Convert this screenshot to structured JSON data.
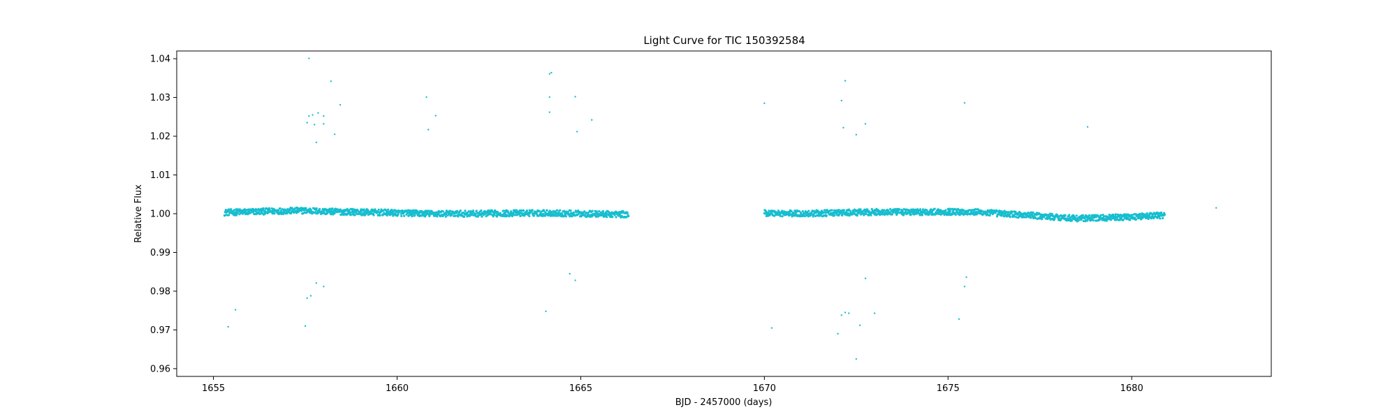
{
  "chart_data": {
    "type": "scatter",
    "title": "Light Curve for TIC 150392584",
    "xlabel": "BJD - 2457000 (days)",
    "ylabel": "Relative Flux",
    "xlim": [
      1654.0,
      1683.8
    ],
    "ylim": [
      0.958,
      1.042
    ],
    "xticks": [
      1655,
      1660,
      1665,
      1670,
      1675,
      1680
    ],
    "yticks": [
      0.96,
      0.97,
      0.98,
      0.99,
      1.0,
      1.01,
      1.02,
      1.03,
      1.04
    ],
    "grid": false,
    "legend": "none",
    "color": "#17becf",
    "series": [
      {
        "baseline_segments": [
          {
            "x": [
              1655.3,
              1656.0,
              1656.8,
              1657.5,
              1658.0,
              1659.0,
              1660.0,
              1661.0,
              1662.0,
              1663.0,
              1664.0,
              1665.0,
              1666.3
            ],
            "y": [
              1.0003,
              1.0005,
              1.0007,
              1.0008,
              1.0006,
              1.0004,
              1.0002,
              1.0,
              1.0,
              1.0001,
              1.0002,
              1.0,
              0.9998
            ]
          },
          {
            "x": [
              1670.0,
              1671.0,
              1672.0,
              1673.0,
              1674.0,
              1675.0,
              1675.8,
              1676.5,
              1677.5,
              1678.5,
              1679.5,
              1680.9
            ],
            "y": [
              1.0002,
              1.0,
              1.0002,
              1.0004,
              1.0004,
              1.0005,
              1.0004,
              1.0,
              0.9994,
              0.9988,
              0.999,
              0.9996
            ]
          }
        ],
        "outliers": [
          [
            1655.4,
            0.9708
          ],
          [
            1655.6,
            0.9752
          ],
          [
            1657.5,
            0.971
          ],
          [
            1657.55,
            0.9782
          ],
          [
            1657.65,
            0.9788
          ],
          [
            1657.8,
            0.9821
          ],
          [
            1658.0,
            0.9812
          ],
          [
            1657.6,
            1.0252
          ],
          [
            1657.7,
            1.0255
          ],
          [
            1657.85,
            1.026
          ],
          [
            1658.0,
            1.0252
          ],
          [
            1657.55,
            1.0235
          ],
          [
            1657.75,
            1.023
          ],
          [
            1657.6,
            1.0401
          ],
          [
            1658.2,
            1.0342
          ],
          [
            1658.45,
            1.0281
          ],
          [
            1658.0,
            1.0232
          ],
          [
            1658.3,
            1.0205
          ],
          [
            1657.8,
            1.0184
          ],
          [
            1660.8,
            1.0301
          ],
          [
            1661.05,
            1.0253
          ],
          [
            1660.85,
            1.0217
          ],
          [
            1664.15,
            1.0361
          ],
          [
            1664.2,
            1.0364
          ],
          [
            1664.15,
            1.0301
          ],
          [
            1664.15,
            1.0262
          ],
          [
            1664.85,
            1.0302
          ],
          [
            1665.3,
            1.0242
          ],
          [
            1664.9,
            1.0212
          ],
          [
            1664.05,
            0.9748
          ],
          [
            1664.7,
            0.9845
          ],
          [
            1664.85,
            0.9828
          ],
          [
            1670.0,
            1.0285
          ],
          [
            1670.2,
            0.9705
          ],
          [
            1672.1,
            1.0292
          ],
          [
            1672.2,
            1.0343
          ],
          [
            1672.15,
            1.0222
          ],
          [
            1672.5,
            1.0204
          ],
          [
            1672.75,
            1.0232
          ],
          [
            1672.0,
            0.969
          ],
          [
            1672.1,
            0.9738
          ],
          [
            1672.2,
            0.9745
          ],
          [
            1672.3,
            0.9743
          ],
          [
            1672.6,
            0.9712
          ],
          [
            1672.75,
            0.9833
          ],
          [
            1672.5,
            0.9625
          ],
          [
            1673.0,
            0.9743
          ],
          [
            1675.3,
            0.9728
          ],
          [
            1675.45,
            0.9812
          ],
          [
            1675.5,
            0.9836
          ],
          [
            1675.45,
            1.0286
          ],
          [
            1678.8,
            1.0224
          ],
          [
            1682.3,
            1.0015
          ]
        ]
      }
    ]
  }
}
